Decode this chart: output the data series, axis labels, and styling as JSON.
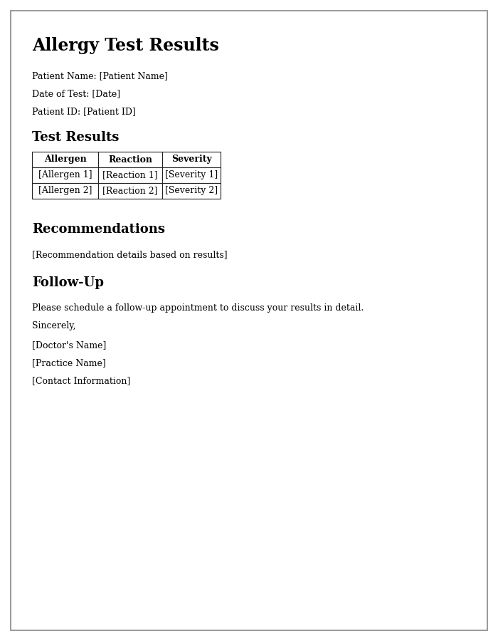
{
  "title": "Allergy Test Results",
  "patient_name_label": "Patient Name: [Patient Name]",
  "date_label": "Date of Test: [Date]",
  "patient_id_label": "Patient ID: [Patient ID]",
  "section_test_results": "Test Results",
  "table_headers": [
    "Allergen",
    "Reaction",
    "Severity"
  ],
  "table_row1": [
    "[Allergen 1]",
    "[Reaction 1]",
    "[Severity 1]"
  ],
  "table_row2": [
    "[Allergen 2]",
    "[Reaction 2]",
    "[Severity 2]"
  ],
  "section_recommendations": "Recommendations",
  "recommendation_text": "[Recommendation details based on results]",
  "section_followup": "Follow-Up",
  "followup_text": "Please schedule a follow-up appointment to discuss your results in detail.",
  "sincerely": "Sincerely,",
  "doctor_name": "[Doctor's Name]",
  "practice_name": "[Practice Name]",
  "contact_info": "[Contact Information]",
  "bg_color": "#ffffff",
  "border_color": "#888888",
  "text_color": "#000000",
  "title_fontsize": 17,
  "heading_fontsize": 13,
  "body_fontsize": 9,
  "table_fontsize": 9
}
